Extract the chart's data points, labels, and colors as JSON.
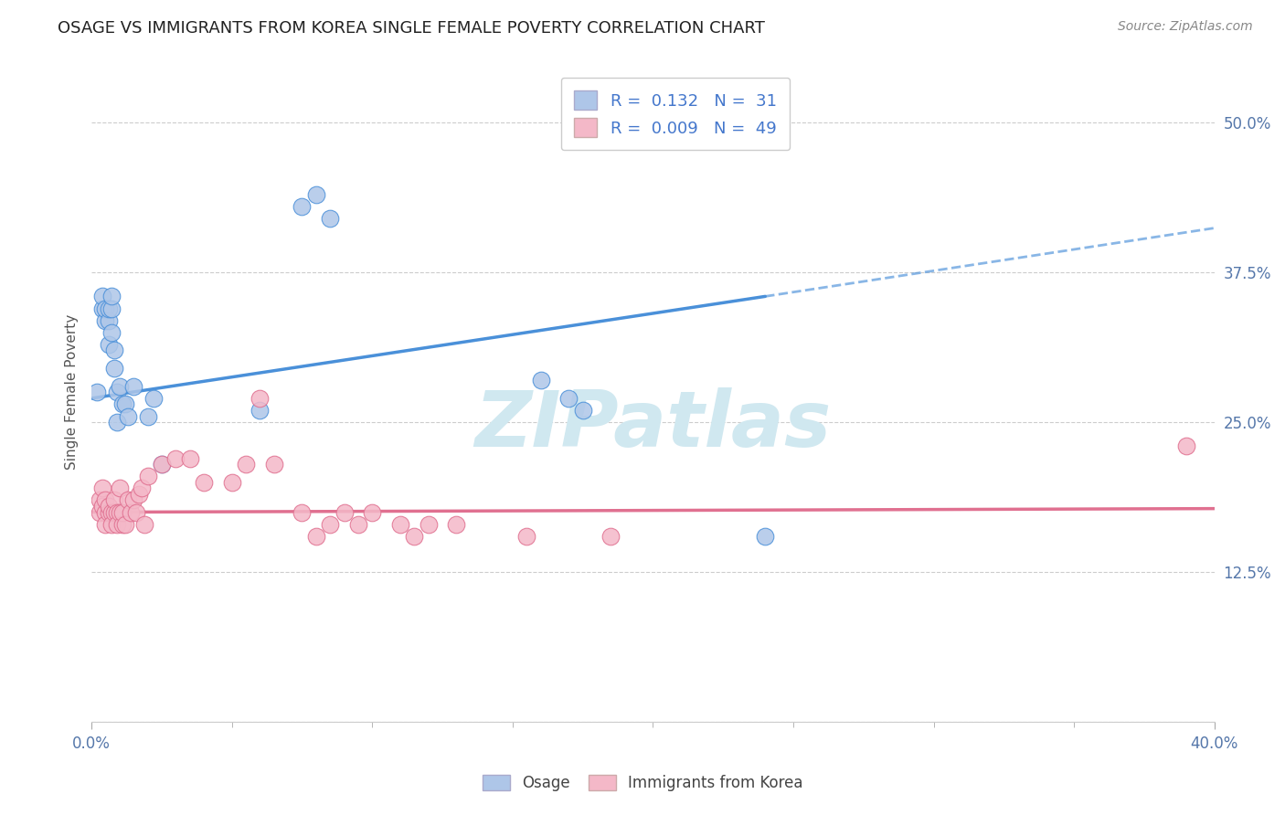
{
  "title": "OSAGE VS IMMIGRANTS FROM KOREA SINGLE FEMALE POVERTY CORRELATION CHART",
  "source": "Source: ZipAtlas.com",
  "ylabel": "Single Female Poverty",
  "osage_R": 0.132,
  "osage_N": 31,
  "korea_R": 0.009,
  "korea_N": 49,
  "legend_osage_color": "#aec6e8",
  "legend_korea_color": "#f4b8c8",
  "scatter_osage_color": "#aec6e8",
  "scatter_korea_color": "#f4b8c8",
  "line_osage_color": "#4a90d9",
  "line_korea_color": "#e07090",
  "background_color": "#ffffff",
  "watermark_text": "ZIPatlas",
  "watermark_color": "#d0e8f0",
  "xlim": [
    0.0,
    0.4
  ],
  "ylim": [
    0.0,
    0.55
  ],
  "osage_x": [
    0.002,
    0.004,
    0.004,
    0.005,
    0.005,
    0.006,
    0.006,
    0.006,
    0.007,
    0.007,
    0.007,
    0.008,
    0.008,
    0.009,
    0.009,
    0.01,
    0.011,
    0.012,
    0.013,
    0.015,
    0.02,
    0.022,
    0.025,
    0.06,
    0.075,
    0.08,
    0.085,
    0.16,
    0.17,
    0.175,
    0.24
  ],
  "osage_y": [
    0.275,
    0.345,
    0.355,
    0.335,
    0.345,
    0.315,
    0.335,
    0.345,
    0.325,
    0.345,
    0.355,
    0.295,
    0.31,
    0.275,
    0.25,
    0.28,
    0.265,
    0.265,
    0.255,
    0.28,
    0.255,
    0.27,
    0.215,
    0.26,
    0.43,
    0.44,
    0.42,
    0.285,
    0.27,
    0.26,
    0.155
  ],
  "korea_x": [
    0.003,
    0.003,
    0.004,
    0.004,
    0.005,
    0.005,
    0.005,
    0.006,
    0.006,
    0.007,
    0.007,
    0.008,
    0.008,
    0.009,
    0.009,
    0.01,
    0.01,
    0.011,
    0.011,
    0.012,
    0.013,
    0.014,
    0.015,
    0.016,
    0.017,
    0.018,
    0.019,
    0.02,
    0.025,
    0.03,
    0.035,
    0.04,
    0.05,
    0.055,
    0.06,
    0.065,
    0.075,
    0.08,
    0.085,
    0.09,
    0.095,
    0.1,
    0.11,
    0.115,
    0.12,
    0.13,
    0.155,
    0.185,
    0.39
  ],
  "korea_y": [
    0.185,
    0.175,
    0.195,
    0.18,
    0.175,
    0.165,
    0.185,
    0.175,
    0.18,
    0.175,
    0.165,
    0.175,
    0.185,
    0.175,
    0.165,
    0.195,
    0.175,
    0.165,
    0.175,
    0.165,
    0.185,
    0.175,
    0.185,
    0.175,
    0.19,
    0.195,
    0.165,
    0.205,
    0.215,
    0.22,
    0.22,
    0.2,
    0.2,
    0.215,
    0.27,
    0.215,
    0.175,
    0.155,
    0.165,
    0.175,
    0.165,
    0.175,
    0.165,
    0.155,
    0.165,
    0.165,
    0.155,
    0.155,
    0.23
  ],
  "osage_trend_x0": 0.0,
  "osage_trend_y0": 0.27,
  "osage_trend_x1": 0.24,
  "osage_trend_y1": 0.355,
  "osage_trend_x2": 0.4,
  "osage_trend_y2": 0.412,
  "korea_trend_x0": 0.0,
  "korea_trend_y0": 0.175,
  "korea_trend_x1": 0.4,
  "korea_trend_y1": 0.178
}
